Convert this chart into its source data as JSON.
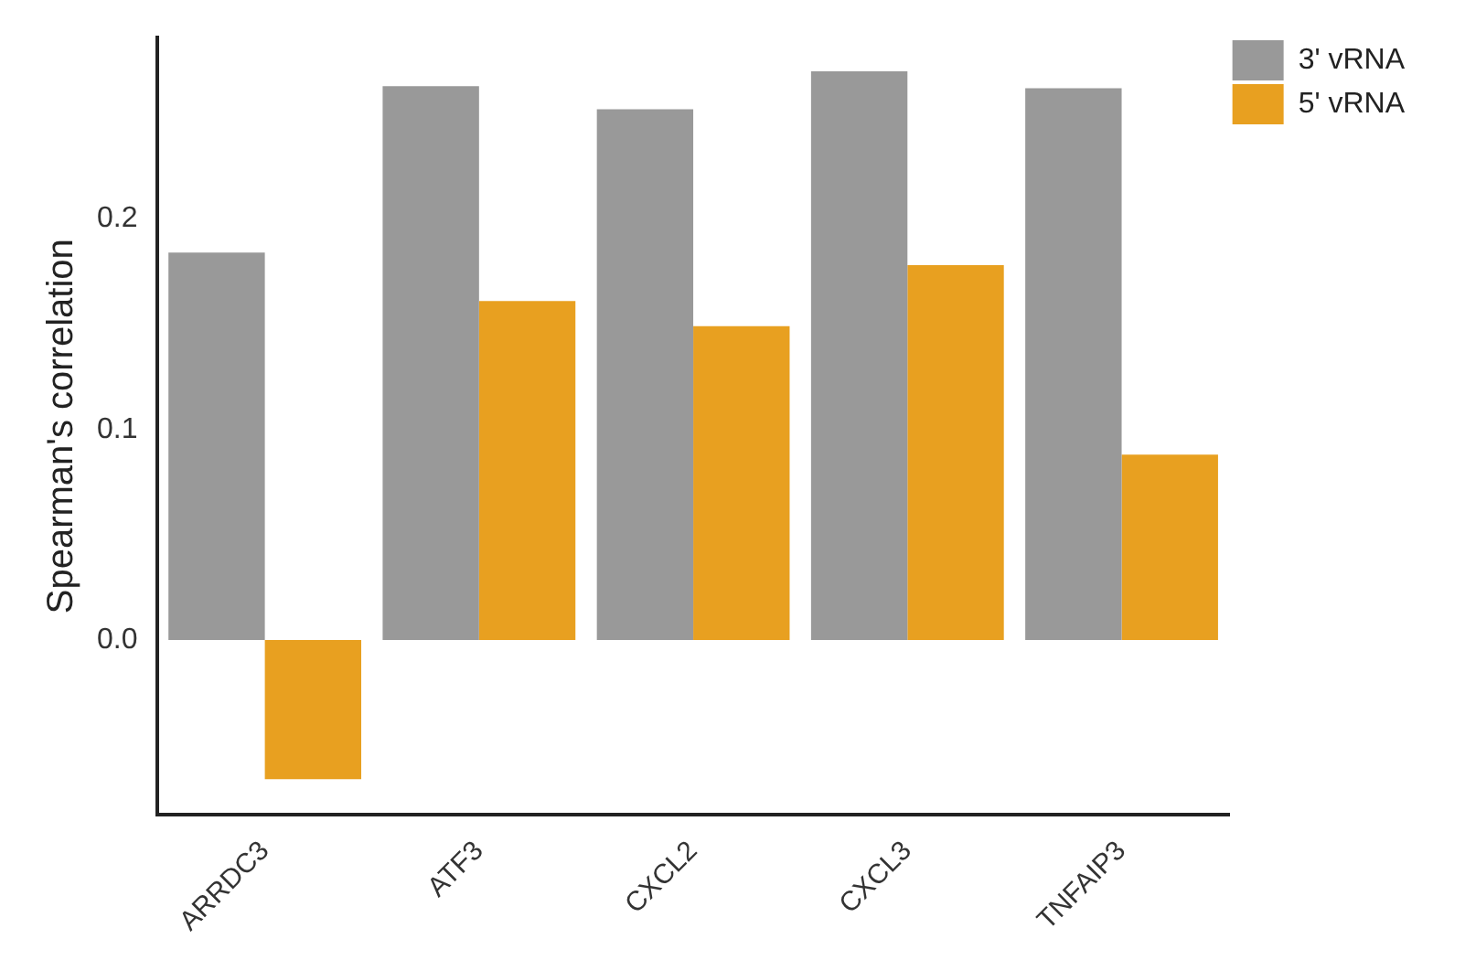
{
  "chart_data": {
    "type": "bar",
    "ylabel": "Spearman's correlation",
    "categories": [
      "ARRDC3",
      "ATF3",
      "CXCL2",
      "CXCL3",
      "TNFAIP3"
    ],
    "series": [
      {
        "name": "3' vRNA",
        "color": "#999999",
        "values": [
          0.184,
          0.263,
          0.252,
          0.27,
          0.262
        ]
      },
      {
        "name": "5' vRNA",
        "color": "#e8a020",
        "values": [
          -0.066,
          0.161,
          0.149,
          0.178,
          0.088
        ]
      }
    ],
    "ylim": [
      -0.083,
      0.286
    ],
    "yticks": [
      {
        "value": 0,
        "label": "0.0"
      },
      0.1,
      0.2
    ],
    "grid": false,
    "legend": "top right"
  }
}
